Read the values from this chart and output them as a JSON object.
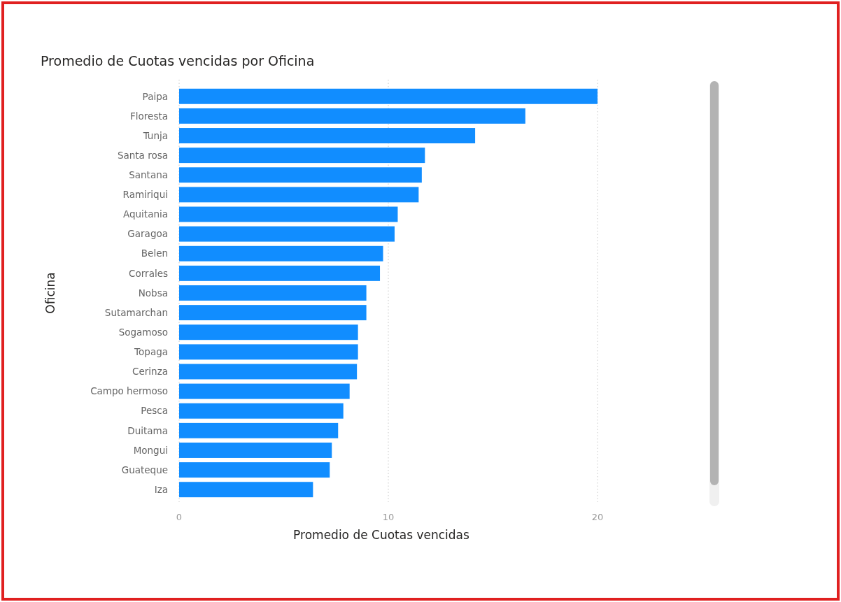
{
  "chart_data": {
    "type": "bar",
    "orientation": "horizontal",
    "title": "Promedio de Cuotas vencidas por Oficina",
    "xlabel": "Promedio de Cuotas vencidas",
    "ylabel": "Oficina",
    "categories": [
      "Paipa",
      "Floresta",
      "Tunja",
      "Santa rosa",
      "Santana",
      "Ramiriqui",
      "Aquitania",
      "Garagoa",
      "Belen",
      "Corrales",
      "Nobsa",
      "Sutamarchan",
      "Sogamoso",
      "Topaga",
      "Cerinza",
      "Campo hermoso",
      "Pesca",
      "Duitama",
      "Mongui",
      "Guateque",
      "Iza"
    ],
    "values": [
      20,
      16.55,
      14.15,
      11.75,
      11.6,
      11.45,
      10.45,
      10.3,
      9.75,
      9.6,
      8.95,
      8.95,
      8.55,
      8.55,
      8.5,
      8.15,
      7.85,
      7.6,
      7.3,
      7.2,
      6.4
    ],
    "color": "#118dff",
    "xlim": [
      0,
      20
    ],
    "xticks": [
      0,
      10,
      20
    ],
    "grid": "x"
  }
}
